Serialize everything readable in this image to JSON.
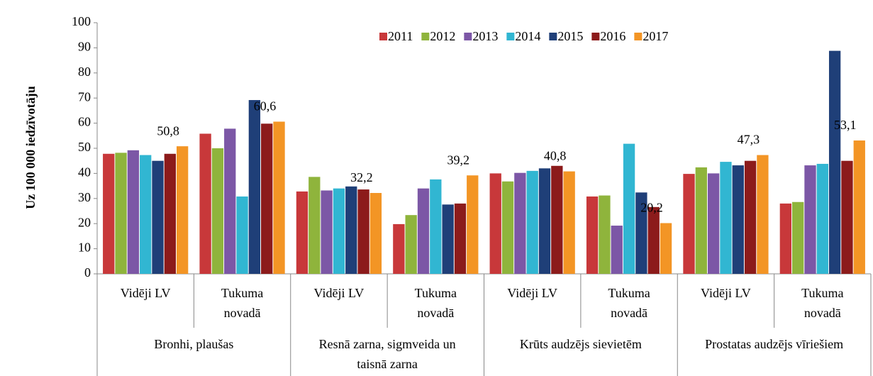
{
  "chart_data": {
    "type": "bar",
    "y_label": "Uz 100 000 iedzīvotāju",
    "categories": [
      "Vidēji LV",
      "Tukuma novadā",
      "Vidēji LV",
      "Tukuma novadā",
      "Vidēji LV",
      "Tukuma novadā",
      "Vidēji LV",
      "Tukuma novadā"
    ],
    "groups": [
      "Bronhi, plaušas",
      "Resnā zarna, sigmveida un taisnā zarna",
      "Krūts audzējs sievietēm",
      "Prostatas audzējs vīriešiem"
    ],
    "series": [
      {
        "name": "2011",
        "color": "#c8383a",
        "values": [
          47.8,
          55.8,
          32.8,
          19.8,
          40,
          30.8,
          39.8,
          28
        ]
      },
      {
        "name": "2012",
        "color": "#8fb43c",
        "values": [
          48.2,
          50,
          38.6,
          23.4,
          36.8,
          31.2,
          42.4,
          28.6
        ]
      },
      {
        "name": "2013",
        "color": "#7c57a6",
        "values": [
          49.2,
          57.8,
          33.2,
          34,
          40.2,
          19.2,
          40,
          43.2
        ]
      },
      {
        "name": "2014",
        "color": "#31b6d2",
        "values": [
          47.3,
          30.8,
          34,
          37.6,
          41,
          51.8,
          44.6,
          43.8
        ]
      },
      {
        "name": "2015",
        "color": "#1f3f78",
        "values": [
          45,
          69.2,
          34.8,
          27.6,
          42,
          32.4,
          43.2,
          88.8
        ]
      },
      {
        "name": "2016",
        "color": "#8c1b1b",
        "values": [
          47.8,
          59.8,
          33.6,
          28,
          43,
          26.6,
          45,
          45
        ]
      },
      {
        "name": "2017",
        "color": "#f39525",
        "values": [
          50.8,
          60.6,
          32.2,
          39.2,
          40.8,
          20.2,
          47.3,
          53.1
        ],
        "value_labels": [
          "50,8",
          "60,6",
          "32,2",
          "39,2",
          "40,8",
          "20,2",
          "47,3",
          "53,1"
        ]
      }
    ],
    "ylim": [
      0,
      100
    ],
    "yticks": [
      0,
      10,
      20,
      30,
      40,
      50,
      60,
      70,
      80,
      90,
      100
    ],
    "grid": false,
    "legend": "top"
  }
}
